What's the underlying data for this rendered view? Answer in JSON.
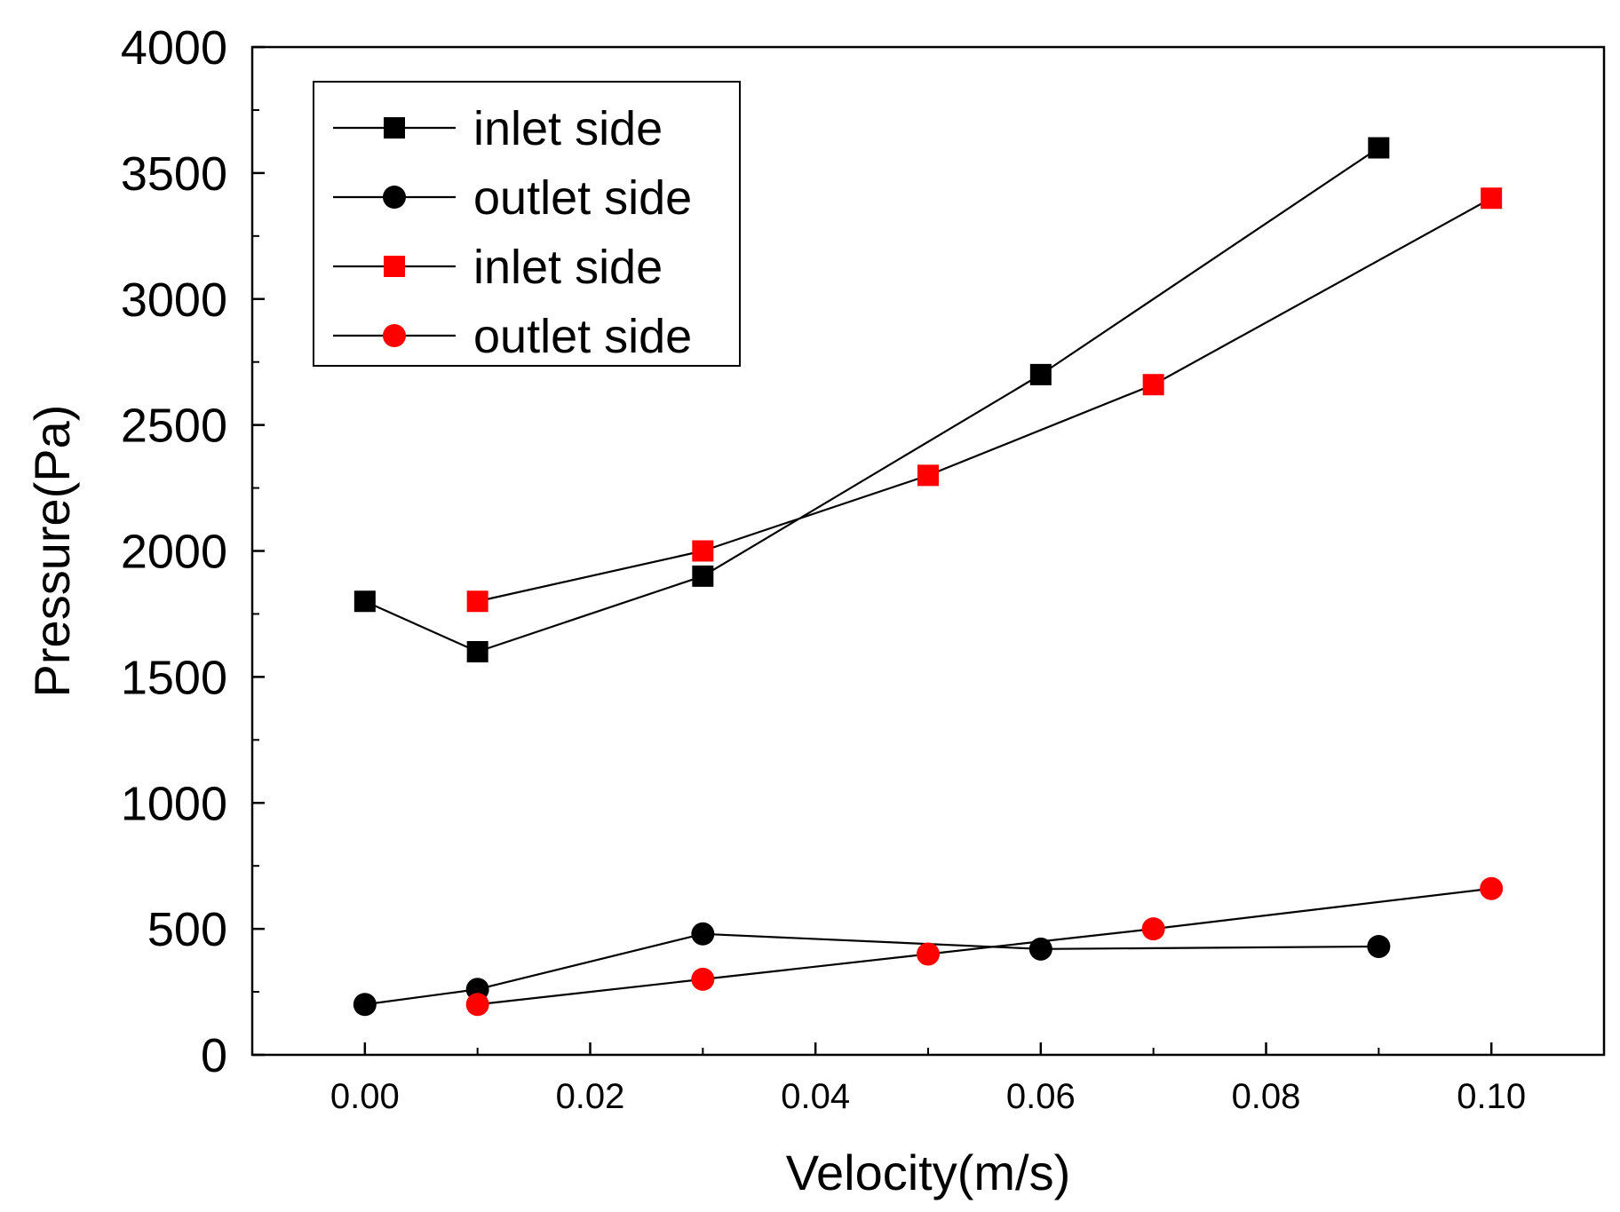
{
  "chart_data": {
    "type": "line",
    "title": "",
    "xlabel": "Velocity(m/s)",
    "ylabel": "Pressure(Pa)",
    "xlim": [
      -0.01,
      0.11
    ],
    "ylim": [
      0,
      4000
    ],
    "xticks": [
      0.0,
      0.02,
      0.04,
      0.06,
      0.08,
      0.1
    ],
    "xtick_labels": [
      "0.00",
      "0.02",
      "0.04",
      "0.06",
      "0.08",
      "0.10"
    ],
    "yticks": [
      0,
      500,
      1000,
      1500,
      2000,
      2500,
      3000,
      3500,
      4000
    ],
    "ytick_labels": [
      "0",
      "500",
      "1000",
      "1500",
      "2000",
      "2500",
      "3000",
      "3500",
      "4000"
    ],
    "grid": false,
    "legend_position": "top-left",
    "series": [
      {
        "name": "inlet side",
        "color": "#000000",
        "marker": "square",
        "x": [
          0.0,
          0.01,
          0.03,
          0.06,
          0.09
        ],
        "y": [
          1800,
          1600,
          1900,
          2700,
          3600
        ]
      },
      {
        "name": "outlet side",
        "color": "#000000",
        "marker": "circle",
        "x": [
          0.0,
          0.01,
          0.03,
          0.06,
          0.09
        ],
        "y": [
          200,
          260,
          480,
          420,
          430
        ]
      },
      {
        "name": "inlet side",
        "color": "#ff0000",
        "marker": "square",
        "x": [
          0.01,
          0.03,
          0.05,
          0.07,
          0.1
        ],
        "y": [
          1800,
          2000,
          2300,
          2660,
          3400
        ]
      },
      {
        "name": "outlet side",
        "color": "#ff0000",
        "marker": "circle",
        "x": [
          0.01,
          0.03,
          0.05,
          0.07,
          0.1
        ],
        "y": [
          200,
          300,
          400,
          500,
          660
        ]
      }
    ]
  }
}
